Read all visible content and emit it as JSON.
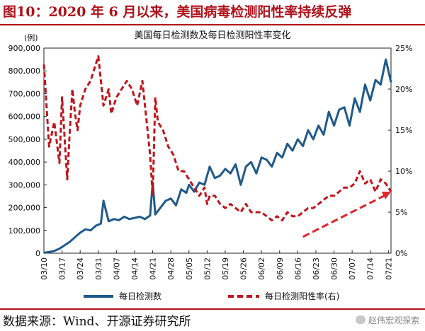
{
  "figure": {
    "title": "图10：2020 年 6 月以来，美国病毒检测阳性率持续反弹",
    "source": "数据来源：Wind、开源证券研究所",
    "watermark": "赵伟宏观探索"
  },
  "colors": {
    "tests": "#1f5a8a",
    "positivity": "#c0141b",
    "trend_arrow": "#e0242b",
    "title": "#b0121b"
  },
  "chart_data": {
    "type": "line",
    "title": "美国每日检测数及每日检测阳性率变化",
    "ylabel_left": "(例)",
    "ylim_left": [
      0,
      900000
    ],
    "yticks_left": [
      "0",
      "100,000",
      "200,000",
      "300,000",
      "400,000",
      "500,000",
      "600,000",
      "700,000",
      "800,000",
      "900,000"
    ],
    "ylim_right": [
      0,
      25
    ],
    "yticks_right": [
      "0%",
      "5%",
      "10%",
      "15%",
      "20%",
      "25%"
    ],
    "x_start": "03/10",
    "x_days": 134,
    "xtick_labels": [
      "03/10",
      "03/17",
      "03/24",
      "03/31",
      "04/07",
      "04/14",
      "04/21",
      "04/28",
      "05/05",
      "05/12",
      "05/19",
      "05/26",
      "06/02",
      "06/09",
      "06/16",
      "06/23",
      "06/30",
      "07/07",
      "07/14",
      "07/21"
    ],
    "series": [
      {
        "name": "每日检测数",
        "axis": "left",
        "style": "solid",
        "x": [
          "03/10",
          "03/12",
          "03/14",
          "03/16",
          "03/18",
          "03/20",
          "03/22",
          "03/24",
          "03/26",
          "03/28",
          "03/30",
          "04/01",
          "04/02",
          "04/04",
          "04/06",
          "04/08",
          "04/10",
          "04/12",
          "04/14",
          "04/16",
          "04/18",
          "04/20",
          "04/21",
          "04/22",
          "04/24",
          "04/26",
          "04/28",
          "04/30",
          "05/02",
          "05/04",
          "05/05",
          "05/07",
          "05/09",
          "05/11",
          "05/13",
          "05/15",
          "05/17",
          "05/19",
          "05/21",
          "05/23",
          "05/25",
          "05/27",
          "05/29",
          "05/31",
          "06/02",
          "06/04",
          "06/06",
          "06/08",
          "06/10",
          "06/12",
          "06/14",
          "06/16",
          "06/18",
          "06/20",
          "06/22",
          "06/24",
          "06/26",
          "06/28",
          "06/30",
          "07/02",
          "07/04",
          "07/06",
          "07/08",
          "07/10",
          "07/12",
          "07/14",
          "07/16",
          "07/18",
          "07/20",
          "07/22"
        ],
        "values": [
          2000,
          5000,
          10000,
          20000,
          35000,
          50000,
          70000,
          90000,
          105000,
          100000,
          120000,
          130000,
          230000,
          140000,
          150000,
          145000,
          160000,
          150000,
          155000,
          160000,
          150000,
          165000,
          310000,
          170000,
          200000,
          230000,
          240000,
          210000,
          280000,
          265000,
          300000,
          270000,
          310000,
          300000,
          380000,
          330000,
          340000,
          370000,
          350000,
          390000,
          300000,
          380000,
          400000,
          350000,
          420000,
          410000,
          380000,
          440000,
          420000,
          480000,
          450000,
          500000,
          470000,
          540000,
          500000,
          560000,
          520000,
          620000,
          560000,
          630000,
          640000,
          560000,
          680000,
          620000,
          740000,
          670000,
          760000,
          740000,
          850000,
          750000
        ]
      },
      {
        "name": "每日检测阳性率(右)",
        "axis": "right",
        "style": "dashed",
        "x": [
          "03/10",
          "03/12",
          "03/14",
          "03/16",
          "03/17",
          "03/19",
          "03/20",
          "03/21",
          "03/22",
          "03/23",
          "03/24",
          "03/26",
          "03/28",
          "03/30",
          "03/31",
          "04/02",
          "04/04",
          "04/05",
          "04/07",
          "04/09",
          "04/11",
          "04/13",
          "04/15",
          "04/17",
          "04/19",
          "04/20",
          "04/21",
          "04/22",
          "04/23",
          "04/25",
          "04/27",
          "04/29",
          "05/01",
          "05/03",
          "05/05",
          "05/07",
          "05/09",
          "05/11",
          "05/12",
          "05/13",
          "05/15",
          "05/17",
          "05/19",
          "05/21",
          "05/23",
          "05/25",
          "05/27",
          "05/29",
          "05/31",
          "06/02",
          "06/04",
          "06/06",
          "06/08",
          "06/10",
          "06/12",
          "06/14",
          "06/16",
          "06/18",
          "06/20",
          "06/22",
          "06/24",
          "06/26",
          "06/28",
          "06/30",
          "07/02",
          "07/04",
          "07/06",
          "07/08",
          "07/10",
          "07/12",
          "07/14",
          "07/16",
          "07/18",
          "07/20",
          "07/22"
        ],
        "values": [
          23,
          13,
          16,
          11,
          19,
          9,
          15,
          20,
          17,
          15,
          18,
          20,
          21,
          23,
          24,
          18,
          20,
          17,
          19,
          20,
          21,
          20,
          18,
          21,
          15,
          12,
          7,
          19,
          16,
          15,
          13,
          12,
          10,
          10,
          9,
          8,
          7,
          8,
          6,
          7,
          7,
          6,
          5.5,
          6,
          5.5,
          5,
          6,
          5,
          5,
          5,
          4.5,
          4,
          4.5,
          4,
          5,
          4.5,
          4.5,
          5,
          5.5,
          5.5,
          6,
          6.5,
          7,
          7,
          7.5,
          8,
          8,
          8.5,
          10,
          8.5,
          9,
          7.5,
          9,
          8.5,
          7.5
        ]
      }
    ],
    "trend_arrow": {
      "from": {
        "x": "06/18",
        "y": 2
      },
      "to": {
        "x": "07/22",
        "y": 7.5
      },
      "axis": "right"
    },
    "legend_position": "bottom"
  }
}
